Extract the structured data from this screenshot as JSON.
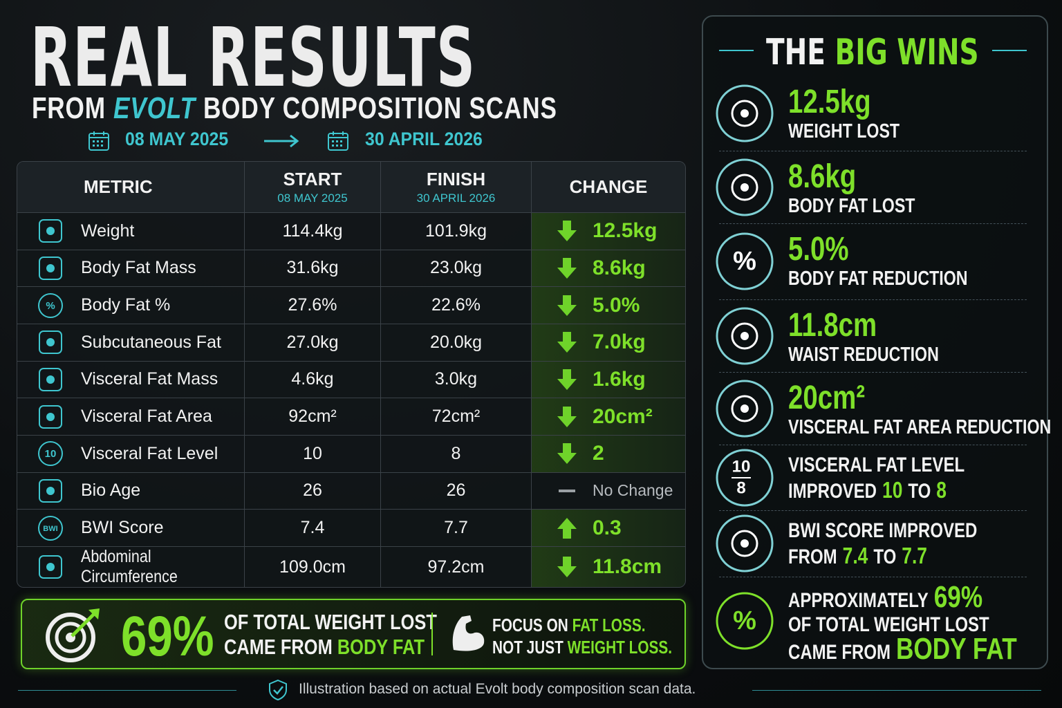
{
  "header": {
    "title": "REAL RESULTS",
    "subtitle": {
      "before": "FROM",
      "brand": "EVOLT",
      "after": "BODY COMPOSITION SCANS"
    },
    "start_date": "08 MAY 2025",
    "end_date": "30 APRIL 2026"
  },
  "table": {
    "columns": [
      "METRIC",
      "START",
      "FINISH",
      "CHANGE"
    ],
    "column_dates": {
      "start": "08 MAY 2025",
      "finish": "30 APRIL 2026"
    },
    "rows": [
      {
        "metric": "Weight",
        "start": "114.4kg",
        "finish": "101.9kg",
        "change": "12.5kg",
        "direction": "down"
      },
      {
        "metric": "Body Fat Mass",
        "start": "31.6kg",
        "finish": "23.0kg",
        "change": "8.6kg",
        "direction": "down"
      },
      {
        "metric": "Body Fat %",
        "start": "27.6%",
        "finish": "22.6%",
        "change": "5.0%",
        "direction": "down",
        "icon_label": "%"
      },
      {
        "metric": "Subcutaneous Fat",
        "start": "27.0kg",
        "finish": "20.0kg",
        "change": "7.0kg",
        "direction": "down"
      },
      {
        "metric": "Visceral Fat Mass",
        "start": "4.6kg",
        "finish": "3.0kg",
        "change": "1.6kg",
        "direction": "down"
      },
      {
        "metric": "Visceral Fat Area",
        "start": "92cm²",
        "finish": "72cm²",
        "change": "20cm²",
        "direction": "down"
      },
      {
        "metric": "Visceral Fat Level",
        "start": "10",
        "finish": "8",
        "change": "2",
        "direction": "down",
        "icon_label": "10"
      },
      {
        "metric": "Bio Age",
        "start": "26",
        "finish": "26",
        "change": "No Change",
        "direction": "none"
      },
      {
        "metric": "BWI Score",
        "start": "7.4",
        "finish": "7.7",
        "change": "0.3",
        "direction": "up",
        "icon_label": "BWI"
      },
      {
        "metric": "Abdominal Circumference",
        "start": "109.0cm",
        "finish": "97.2cm",
        "change": "11.8cm",
        "direction": "down"
      }
    ]
  },
  "banner": {
    "percent": "69%",
    "line1": "OF TOTAL WEIGHT LOST",
    "line2": {
      "plain": "CAME FROM",
      "accent": "BODY FAT"
    },
    "focus1": {
      "plain": "FOCUS ON",
      "accent": "FAT LOSS."
    },
    "focus2": {
      "plain": "NOT JUST",
      "accent": "WEIGHT LOSS."
    }
  },
  "wins": {
    "title": {
      "plain": "THE",
      "accent": "BIG WINS"
    },
    "items": [
      {
        "headline": "12.5kg",
        "label": "WEIGHT LOST"
      },
      {
        "headline": "8.6kg",
        "label": "BODY FAT LOST"
      },
      {
        "headline": "5.0%",
        "label": "BODY FAT REDUCTION",
        "icon_label": "%"
      },
      {
        "headline": "11.8cm",
        "label": "WAIST REDUCTION"
      },
      {
        "headline": "20cm²",
        "label": "VISCERAL FAT AREA REDUCTION"
      },
      {
        "icon_top": "10",
        "icon_bottom": "8",
        "lines": [
          [
            {
              "text": "VISCERAL FAT LEVEL"
            }
          ],
          [
            {
              "text": "IMPROVED"
            },
            {
              "text": "10",
              "accent": true
            },
            {
              "text": "TO"
            },
            {
              "text": "8",
              "accent": true
            }
          ]
        ]
      },
      {
        "lines": [
          [
            {
              "text": "BWI SCORE IMPROVED"
            }
          ],
          [
            {
              "text": "FROM"
            },
            {
              "text": "7.4",
              "accent": true
            },
            {
              "text": "TO"
            },
            {
              "text": "7.7",
              "accent": true
            }
          ]
        ]
      },
      {
        "icon_label": "%",
        "lines": [
          [
            {
              "text": "APPROXIMATELY"
            },
            {
              "text": "69%",
              "accent": true
            }
          ],
          [
            {
              "text": "OF TOTAL WEIGHT LOST"
            }
          ],
          [
            {
              "text": "CAME FROM"
            },
            {
              "text": "BODY FAT",
              "accent": true
            }
          ]
        ]
      }
    ]
  },
  "footer": "Illustration based on actual Evolt body composition scan data."
}
